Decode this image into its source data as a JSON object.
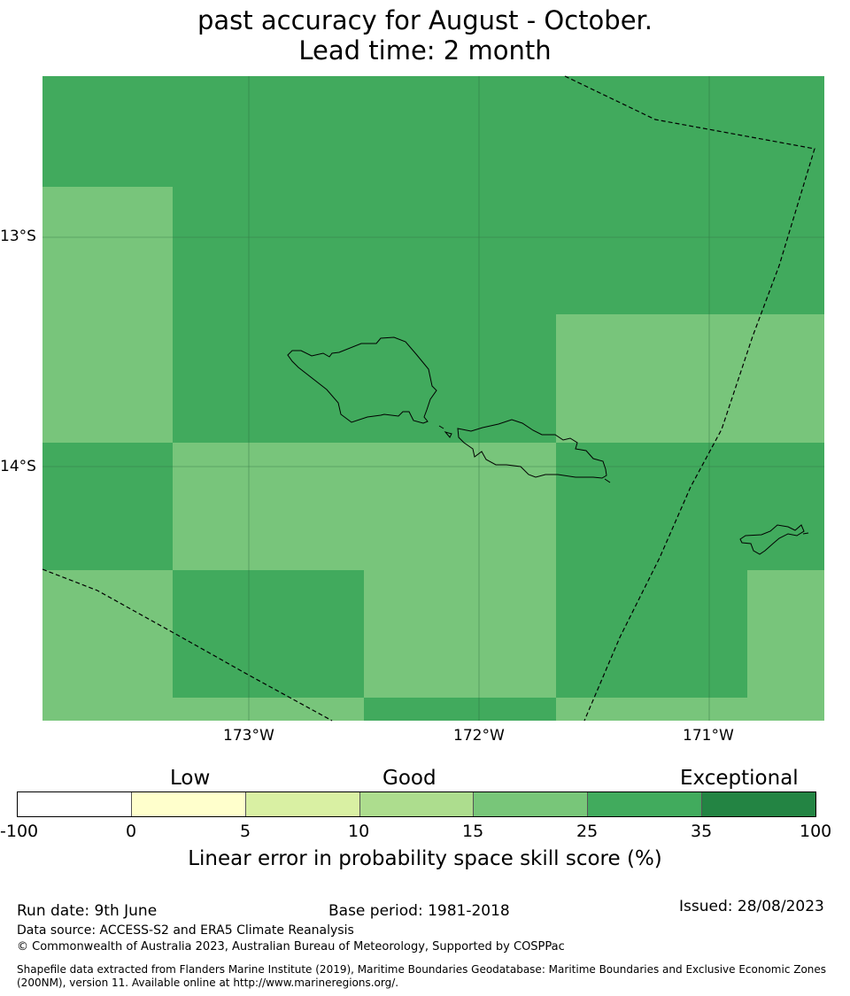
{
  "title": {
    "line1": "past accuracy for August - October.",
    "line2": "Lead time: 2 month"
  },
  "map": {
    "latitude_labels": [
      "13°S",
      "14°S"
    ],
    "longitude_labels": [
      "173°W",
      "172°W",
      "171°W"
    ],
    "colors": {
      "skill_25_35": "#41aa5d",
      "skill_15_25": "#78c57b",
      "coastline": "#000000",
      "boundary": "#000000",
      "gridline": "#2e6b3f"
    }
  },
  "legend": {
    "categories": [
      "Low",
      "Good",
      "Exceptional"
    ],
    "ticks": [
      "-100",
      "0",
      "5",
      "10",
      "15",
      "25",
      "35",
      "100"
    ],
    "colors": [
      "#ffffff",
      "#ffffcc",
      "#d9f0a3",
      "#addd8e",
      "#78c679",
      "#41ab5d",
      "#238443"
    ],
    "label": "Linear error in probability space skill score (%)"
  },
  "footer": {
    "run_date": "Run date: 9th June",
    "base_period": "Base period: 1981-2018",
    "issued": "Issued: 28/08/2023",
    "data_source": "Data source: ACCESS-S2 and ERA5 Climate Reanalysis",
    "copyright": "© Commonwealth of Australia 2023, Australian Bureau of Meteorology, Supported by COSPPac",
    "shapefile_line1": "Shapefile data extracted from Flanders Marine Institute (2019), Maritime Boundaries Geodatabase: Maritime Boundaries and Exclusive Economic Zones",
    "shapefile_line2": "(200NM), version 11. Available online at http://www.marineregions.org/."
  }
}
